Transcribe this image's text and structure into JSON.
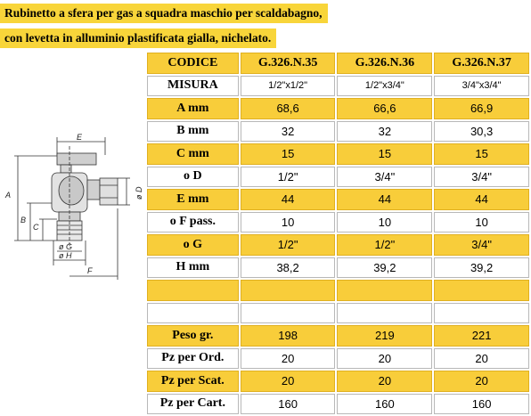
{
  "title_lines": [
    "Rubinetto a sfera per gas a squadra maschio per scaldabagno,",
    "con levetta in alluminio plastificata gialla, nichelato."
  ],
  "drawing": {
    "labels": {
      "E": "E",
      "A": "A",
      "B": "B",
      "C": "C",
      "D": "ø D",
      "F": "F",
      "G": "ø G",
      "H": "ø H"
    }
  },
  "table": {
    "rows": [
      {
        "label": "CODICE",
        "values": [
          "G.326.N.35",
          "G.326.N.36",
          "G.326.N.37"
        ],
        "style": "yellow"
      },
      {
        "label": "MISURA",
        "values": [
          "1/2\"x1/2\"",
          "1/2\"x3/4\"",
          "3/4\"x3/4\""
        ],
        "style": "white"
      },
      {
        "label": "A mm",
        "values": [
          "68,6",
          "66,6",
          "66,9"
        ],
        "style": "yellow"
      },
      {
        "label": "B mm",
        "values": [
          "32",
          "32",
          "30,3"
        ],
        "style": "white"
      },
      {
        "label": "C mm",
        "values": [
          "15",
          "15",
          "15"
        ],
        "style": "yellow"
      },
      {
        "label": "o D",
        "values": [
          "1/2\"",
          "3/4\"",
          "3/4\""
        ],
        "style": "white"
      },
      {
        "label": "E mm",
        "values": [
          "44",
          "44",
          "44"
        ],
        "style": "yellow"
      },
      {
        "label": "o F pass.",
        "values": [
          "10",
          "10",
          "10"
        ],
        "style": "white"
      },
      {
        "label": "o G",
        "values": [
          "1/2\"",
          "1/2\"",
          "3/4\""
        ],
        "style": "yellow"
      },
      {
        "label": "H mm",
        "values": [
          "38,2",
          "39,2",
          "39,2"
        ],
        "style": "white"
      },
      {
        "label": "",
        "values": [
          "",
          "",
          ""
        ],
        "style": "yellow"
      },
      {
        "label": "",
        "values": [
          "",
          "",
          ""
        ],
        "style": "white"
      },
      {
        "label": "Peso gr.",
        "values": [
          "198",
          "219",
          "221"
        ],
        "style": "yellow"
      },
      {
        "label": "Pz per Ord.",
        "values": [
          "20",
          "20",
          "20"
        ],
        "style": "white"
      },
      {
        "label": "Pz per Scat.",
        "values": [
          "20",
          "20",
          "20"
        ],
        "style": "yellow"
      },
      {
        "label": "Pz per Cart.",
        "values": [
          "160",
          "160",
          "160"
        ],
        "style": "white"
      }
    ]
  },
  "colors": {
    "yellow": "#f8cd3a",
    "title_yellow": "#f8d53a"
  }
}
